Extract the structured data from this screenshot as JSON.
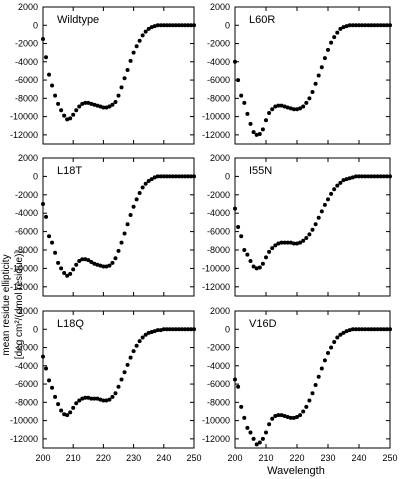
{
  "figure": {
    "ylabel_line1": "mean residue ellipticity",
    "ylabel_line2": "[deg cm²/(dmol residue)]",
    "xlabel": "Wavelength"
  },
  "chart_data": [
    {
      "type": "scatter",
      "title": "Wildtype",
      "xlim": [
        200,
        250
      ],
      "ylim": [
        -13000,
        2000
      ],
      "x_ticks": [
        200,
        210,
        220,
        230,
        240,
        250
      ],
      "y_ticks": [
        2000,
        0,
        -2000,
        -4000,
        -6000,
        -8000,
        -10000,
        -12000
      ],
      "series": [
        {
          "x": [
            200,
            201,
            202,
            203,
            204,
            205,
            206,
            207,
            208,
            209,
            210,
            211,
            212,
            213,
            214,
            215,
            216,
            217,
            218,
            219,
            220,
            221,
            222,
            223,
            224,
            225,
            226,
            227,
            228,
            229,
            230,
            231,
            232,
            233,
            234,
            235,
            236,
            237,
            238,
            239,
            240,
            241,
            242,
            243,
            244,
            245,
            246,
            247,
            248,
            249,
            250
          ],
          "y": [
            -1500,
            -3500,
            -5400,
            -6600,
            -7700,
            -8600,
            -9300,
            -9900,
            -10300,
            -10200,
            -9800,
            -9300,
            -8900,
            -8600,
            -8500,
            -8500,
            -8600,
            -8700,
            -8800,
            -8900,
            -9000,
            -9000,
            -8900,
            -8700,
            -8400,
            -7700,
            -6800,
            -5800,
            -4900,
            -3900,
            -3000,
            -2300,
            -1700,
            -1100,
            -700,
            -400,
            -200,
            -100,
            0,
            0,
            0,
            0,
            0,
            0,
            0,
            0,
            0,
            0,
            0,
            0,
            0
          ]
        }
      ]
    },
    {
      "type": "scatter",
      "title": "L60R",
      "xlim": [
        200,
        250
      ],
      "ylim": [
        -13000,
        2000
      ],
      "x_ticks": [
        200,
        210,
        220,
        230,
        240,
        250
      ],
      "y_ticks": [
        2000,
        0,
        -2000,
        -4000,
        -6000,
        -8000,
        -10000,
        -12000
      ],
      "series": [
        {
          "x": [
            200,
            201,
            202,
            203,
            204,
            205,
            206,
            207,
            208,
            209,
            210,
            211,
            212,
            213,
            214,
            215,
            216,
            217,
            218,
            219,
            220,
            221,
            222,
            223,
            224,
            225,
            226,
            227,
            228,
            229,
            230,
            231,
            232,
            233,
            234,
            235,
            236,
            237,
            238,
            239,
            240,
            241,
            242,
            243,
            244,
            245,
            246,
            247,
            248,
            249,
            250
          ],
          "y": [
            -4000,
            -6000,
            -7700,
            -8500,
            -9700,
            -10800,
            -11700,
            -12000,
            -11900,
            -11400,
            -10400,
            -9600,
            -9200,
            -8900,
            -8800,
            -8800,
            -8900,
            -9000,
            -9100,
            -9200,
            -9200,
            -9100,
            -8900,
            -8500,
            -8000,
            -7300,
            -6400,
            -5500,
            -4600,
            -3600,
            -2700,
            -1900,
            -1300,
            -800,
            -400,
            -200,
            -100,
            0,
            0,
            0,
            0,
            0,
            0,
            0,
            0,
            0,
            0,
            0,
            0,
            0,
            0
          ]
        }
      ]
    },
    {
      "type": "scatter",
      "title": "L18T",
      "xlim": [
        200,
        250
      ],
      "ylim": [
        -13000,
        2000
      ],
      "x_ticks": [
        200,
        210,
        220,
        230,
        240,
        250
      ],
      "y_ticks": [
        2000,
        0,
        -2000,
        -4000,
        -6000,
        -8000,
        -10000,
        -12000
      ],
      "series": [
        {
          "x": [
            200,
            201,
            202,
            203,
            204,
            205,
            206,
            207,
            208,
            209,
            210,
            211,
            212,
            213,
            214,
            215,
            216,
            217,
            218,
            219,
            220,
            221,
            222,
            223,
            224,
            225,
            226,
            227,
            228,
            229,
            230,
            231,
            232,
            233,
            234,
            235,
            236,
            237,
            238,
            239,
            240,
            241,
            242,
            243,
            244,
            245,
            246,
            247,
            248,
            249,
            250
          ],
          "y": [
            -3000,
            -4400,
            -6500,
            -7200,
            -8300,
            -9400,
            -10000,
            -10500,
            -10800,
            -10600,
            -10100,
            -9600,
            -9200,
            -9000,
            -9000,
            -9100,
            -9300,
            -9500,
            -9600,
            -9700,
            -9800,
            -9800,
            -9700,
            -9400,
            -8900,
            -8100,
            -7200,
            -6200,
            -5200,
            -4200,
            -3300,
            -2500,
            -1800,
            -1200,
            -800,
            -500,
            -300,
            -100,
            0,
            0,
            0,
            0,
            0,
            0,
            0,
            0,
            0,
            0,
            0,
            0,
            0
          ]
        }
      ]
    },
    {
      "type": "scatter",
      "title": "I55N",
      "xlim": [
        200,
        250
      ],
      "ylim": [
        -13000,
        2000
      ],
      "x_ticks": [
        200,
        210,
        220,
        230,
        240,
        250
      ],
      "y_ticks": [
        2000,
        0,
        -2000,
        -4000,
        -6000,
        -8000,
        -10000,
        -12000
      ],
      "series": [
        {
          "x": [
            200,
            201,
            202,
            203,
            204,
            205,
            206,
            207,
            208,
            209,
            210,
            211,
            212,
            213,
            214,
            215,
            216,
            217,
            218,
            219,
            220,
            221,
            222,
            223,
            224,
            225,
            226,
            227,
            228,
            229,
            230,
            231,
            232,
            233,
            234,
            235,
            236,
            237,
            238,
            239,
            240,
            241,
            242,
            243,
            244,
            245,
            246,
            247,
            248,
            249,
            250
          ],
          "y": [
            -3500,
            -5500,
            -6500,
            -8000,
            -8500,
            -9200,
            -9800,
            -10000,
            -9900,
            -9500,
            -8800,
            -8200,
            -7800,
            -7500,
            -7300,
            -7200,
            -7200,
            -7200,
            -7200,
            -7300,
            -7300,
            -7200,
            -7000,
            -6700,
            -6300,
            -5800,
            -5200,
            -4500,
            -3800,
            -3100,
            -2500,
            -1900,
            -1400,
            -1000,
            -700,
            -400,
            -300,
            -200,
            -100,
            0,
            0,
            0,
            0,
            0,
            0,
            0,
            0,
            0,
            0,
            0,
            0
          ]
        }
      ]
    },
    {
      "type": "scatter",
      "title": "L18Q",
      "xlim": [
        200,
        250
      ],
      "ylim": [
        -13000,
        2000
      ],
      "x_ticks": [
        200,
        210,
        220,
        230,
        240,
        250
      ],
      "y_ticks": [
        2000,
        0,
        -2000,
        -4000,
        -6000,
        -8000,
        -10000,
        -12000
      ],
      "series": [
        {
          "x": [
            200,
            201,
            202,
            203,
            204,
            205,
            206,
            207,
            208,
            209,
            210,
            211,
            212,
            213,
            214,
            215,
            216,
            217,
            218,
            219,
            220,
            221,
            222,
            223,
            224,
            225,
            226,
            227,
            228,
            229,
            230,
            231,
            232,
            233,
            234,
            235,
            236,
            237,
            238,
            239,
            240,
            241,
            242,
            243,
            244,
            245,
            246,
            247,
            248,
            249,
            250
          ],
          "y": [
            -3000,
            -4300,
            -5600,
            -6400,
            -7400,
            -8200,
            -8900,
            -9300,
            -9400,
            -9100,
            -8600,
            -8100,
            -7800,
            -7600,
            -7500,
            -7500,
            -7600,
            -7600,
            -7600,
            -7700,
            -7800,
            -7800,
            -7700,
            -7400,
            -7000,
            -6300,
            -5500,
            -4700,
            -3900,
            -3100,
            -2400,
            -1800,
            -1300,
            -900,
            -600,
            -400,
            -300,
            -200,
            -100,
            -100,
            0,
            0,
            0,
            0,
            0,
            0,
            0,
            0,
            0,
            0,
            0
          ]
        }
      ]
    },
    {
      "type": "scatter",
      "title": "V16D",
      "xlim": [
        200,
        250
      ],
      "ylim": [
        -13000,
        2000
      ],
      "x_ticks": [
        200,
        210,
        220,
        230,
        240,
        250
      ],
      "y_ticks": [
        2000,
        0,
        -2000,
        -4000,
        -6000,
        -8000,
        -10000,
        -12000
      ],
      "series": [
        {
          "x": [
            200,
            201,
            202,
            203,
            204,
            205,
            206,
            207,
            208,
            209,
            210,
            211,
            212,
            213,
            214,
            215,
            216,
            217,
            218,
            219,
            220,
            221,
            222,
            223,
            224,
            225,
            226,
            227,
            228,
            229,
            230,
            231,
            232,
            233,
            234,
            235,
            236,
            237,
            238,
            239,
            240,
            241,
            242,
            243,
            244,
            245,
            246,
            247,
            248,
            249,
            250
          ],
          "y": [
            -5500,
            -6300,
            -8500,
            -9700,
            -10800,
            -11300,
            -12000,
            -12600,
            -12400,
            -12000,
            -11300,
            -10400,
            -9800,
            -9500,
            -9400,
            -9400,
            -9500,
            -9600,
            -9700,
            -9700,
            -9600,
            -9400,
            -9000,
            -8500,
            -7800,
            -7000,
            -6100,
            -5200,
            -4300,
            -3400,
            -2600,
            -2000,
            -1400,
            -900,
            -600,
            -400,
            -200,
            -100,
            0,
            0,
            0,
            0,
            0,
            0,
            0,
            0,
            0,
            0,
            0,
            0,
            0
          ]
        }
      ]
    }
  ]
}
